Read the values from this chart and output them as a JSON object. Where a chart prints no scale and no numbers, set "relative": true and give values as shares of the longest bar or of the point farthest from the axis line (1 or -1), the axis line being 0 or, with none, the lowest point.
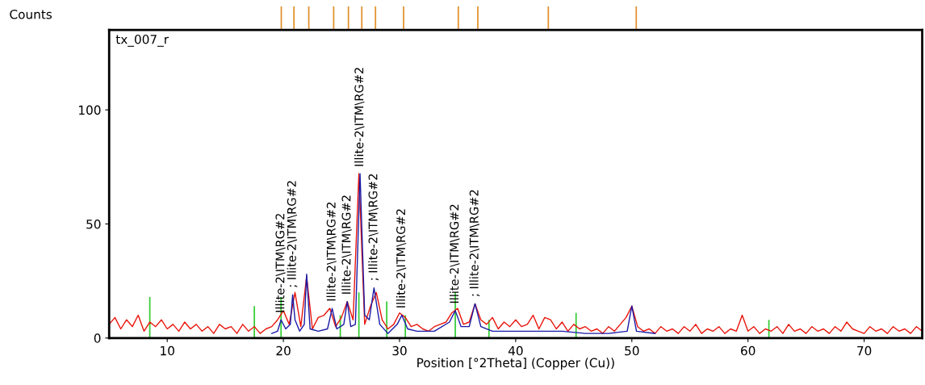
{
  "chart_data": [
    {
      "type": "bar",
      "relative": true,
      "xlim": [
        5,
        75
      ],
      "color": "#e0902a",
      "x": [
        19.82,
        20.91,
        22.19,
        24.33,
        25.6,
        26.75,
        27.93,
        30.35,
        35.06,
        36.74,
        42.81,
        50.38
      ],
      "values": [
        1,
        1,
        1,
        1,
        1,
        1,
        1,
        1,
        1,
        1,
        1,
        1
      ]
    },
    {
      "type": "line",
      "ylabel": "Counts",
      "xlabel": "Position [°2Theta] (Copper (Cu))",
      "xlim": [
        5,
        75
      ],
      "xticks": [
        10,
        20,
        30,
        40,
        50,
        60,
        70
      ],
      "ylim": [
        0,
        135
      ],
      "yticks": [
        0,
        50,
        100
      ],
      "series": [
        {
          "color": "#e8140a",
          "x": [
            5,
            5.5,
            6,
            6.5,
            7,
            7.5,
            8,
            8.5,
            9,
            9.5,
            10,
            10.5,
            11,
            11.5,
            12,
            12.5,
            13,
            13.5,
            14,
            14.5,
            15,
            15.5,
            16,
            16.5,
            17,
            17.5,
            18,
            18.5,
            19,
            19.5,
            20,
            20.5,
            21,
            21.5,
            22,
            22.5,
            23,
            23.5,
            24,
            24.5,
            25,
            25.5,
            26,
            26.5,
            27,
            27.5,
            28,
            28.5,
            29,
            29.5,
            30,
            30.5,
            31,
            31.5,
            32,
            32.5,
            33,
            33.5,
            34,
            34.5,
            35,
            35.5,
            36,
            36.5,
            37,
            37.5,
            38,
            38.5,
            39,
            39.5,
            40,
            40.5,
            41,
            41.5,
            42,
            42.5,
            43,
            43.5,
            44,
            44.5,
            45,
            45.5,
            46,
            46.5,
            47,
            47.5,
            48,
            48.5,
            49,
            49.5,
            50,
            50.5,
            51,
            51.5,
            52,
            52.5,
            53,
            53.5,
            54,
            54.5,
            55,
            55.5,
            56,
            56.5,
            57,
            57.5,
            58,
            58.5,
            59,
            59.5,
            60,
            60.5,
            61,
            61.5,
            62,
            62.5,
            63,
            63.5,
            64,
            64.5,
            65,
            65.5,
            66,
            66.5,
            67,
            67.5,
            68,
            68.5,
            69,
            69.5,
            70,
            70.5,
            71,
            71.5,
            72,
            72.5,
            73,
            73.5,
            74,
            74.5,
            75
          ],
          "values": [
            6,
            9,
            4,
            8,
            5,
            10,
            3,
            7,
            5,
            8,
            4,
            6,
            3,
            7,
            4,
            6,
            3,
            5,
            2,
            6,
            4,
            5,
            2,
            6,
            3,
            5,
            2,
            4,
            5,
            8,
            12,
            6,
            20,
            5,
            27,
            4,
            9,
            10,
            13,
            5,
            9,
            16,
            8,
            72,
            6,
            14,
            20,
            8,
            4,
            6,
            11,
            9,
            5,
            6,
            4,
            3,
            5,
            6,
            7,
            11,
            13,
            6,
            7,
            15,
            8,
            6,
            9,
            4,
            7,
            5,
            8,
            5,
            6,
            10,
            4,
            9,
            8,
            4,
            7,
            3,
            6,
            4,
            5,
            3,
            4,
            2,
            5,
            3,
            6,
            9,
            14,
            5,
            3,
            4,
            2,
            5,
            3,
            4,
            2,
            5,
            3,
            6,
            2,
            4,
            3,
            5,
            2,
            4,
            3,
            10,
            3,
            5,
            2,
            4,
            3,
            5,
            2,
            6,
            3,
            4,
            2,
            5,
            3,
            4,
            2,
            5,
            3,
            7,
            4,
            3,
            2,
            5,
            3,
            4,
            2,
            5,
            3,
            4,
            2,
            5,
            3
          ]
        },
        {
          "color": "#1a1aa6",
          "x": [
            19,
            19.5,
            19.8,
            20.2,
            20.6,
            20.8,
            21.0,
            21.4,
            21.8,
            22.0,
            22.3,
            23.0,
            23.8,
            24.2,
            24.6,
            25.2,
            25.5,
            25.8,
            26.2,
            26.6,
            27.0,
            27.4,
            27.8,
            28.3,
            29.0,
            29.8,
            30.2,
            30.7,
            31.5,
            33,
            34.3,
            34.8,
            35.3,
            36,
            36.5,
            37,
            38,
            40,
            42,
            44,
            46,
            48,
            49.6,
            50,
            50.4,
            52
          ],
          "values": [
            2,
            3,
            8,
            4,
            6,
            19,
            8,
            3,
            6,
            28,
            4,
            3,
            4,
            13,
            4,
            6,
            16,
            5,
            6,
            72,
            10,
            8,
            22,
            6,
            2,
            6,
            10,
            4,
            3,
            3,
            7,
            12,
            5,
            5,
            15,
            5,
            3,
            3,
            3,
            3,
            2,
            2,
            3,
            14,
            3,
            2
          ]
        },
        {
          "type": "bar",
          "color": "#33cc33",
          "x": [
            8.5,
            17.5,
            19.8,
            24.9,
            26.5,
            28.9,
            30.5,
            34.8,
            37.7,
            45.2,
            61.8
          ],
          "values": [
            18,
            14,
            18,
            10,
            20,
            16,
            10,
            20,
            8,
            11,
            8
          ]
        }
      ],
      "annotations": [
        "tx_007_r",
        {
          "text": "Illite-2\\ITM\\RG#2",
          "x": 19.8,
          "y": 8
        },
        {
          "text": "; Illite-2\\ITM\\RG#2",
          "x": 20.8,
          "y": 19
        },
        {
          "text": "Illite-2\\ITM\\RG#2",
          "x": 24.2,
          "y": 13
        },
        {
          "text": "Illite-2\\ITM\\RG#2",
          "x": 25.5,
          "y": 16
        },
        {
          "text": "Illite-2\\ITM\\RG#2",
          "x": 26.6,
          "y": 72
        },
        {
          "text": "; Illite-2\\ITM\\RG#2",
          "x": 27.8,
          "y": 22
        },
        {
          "text": "Illite-2\\ITM\\RG#2",
          "x": 30.2,
          "y": 10
        },
        {
          "text": "Illite-2\\ITM\\RG#2",
          "x": 34.8,
          "y": 12
        },
        {
          "text": "; Illite-2\\ITM\\RG#2",
          "x": 36.5,
          "y": 15
        }
      ]
    }
  ]
}
